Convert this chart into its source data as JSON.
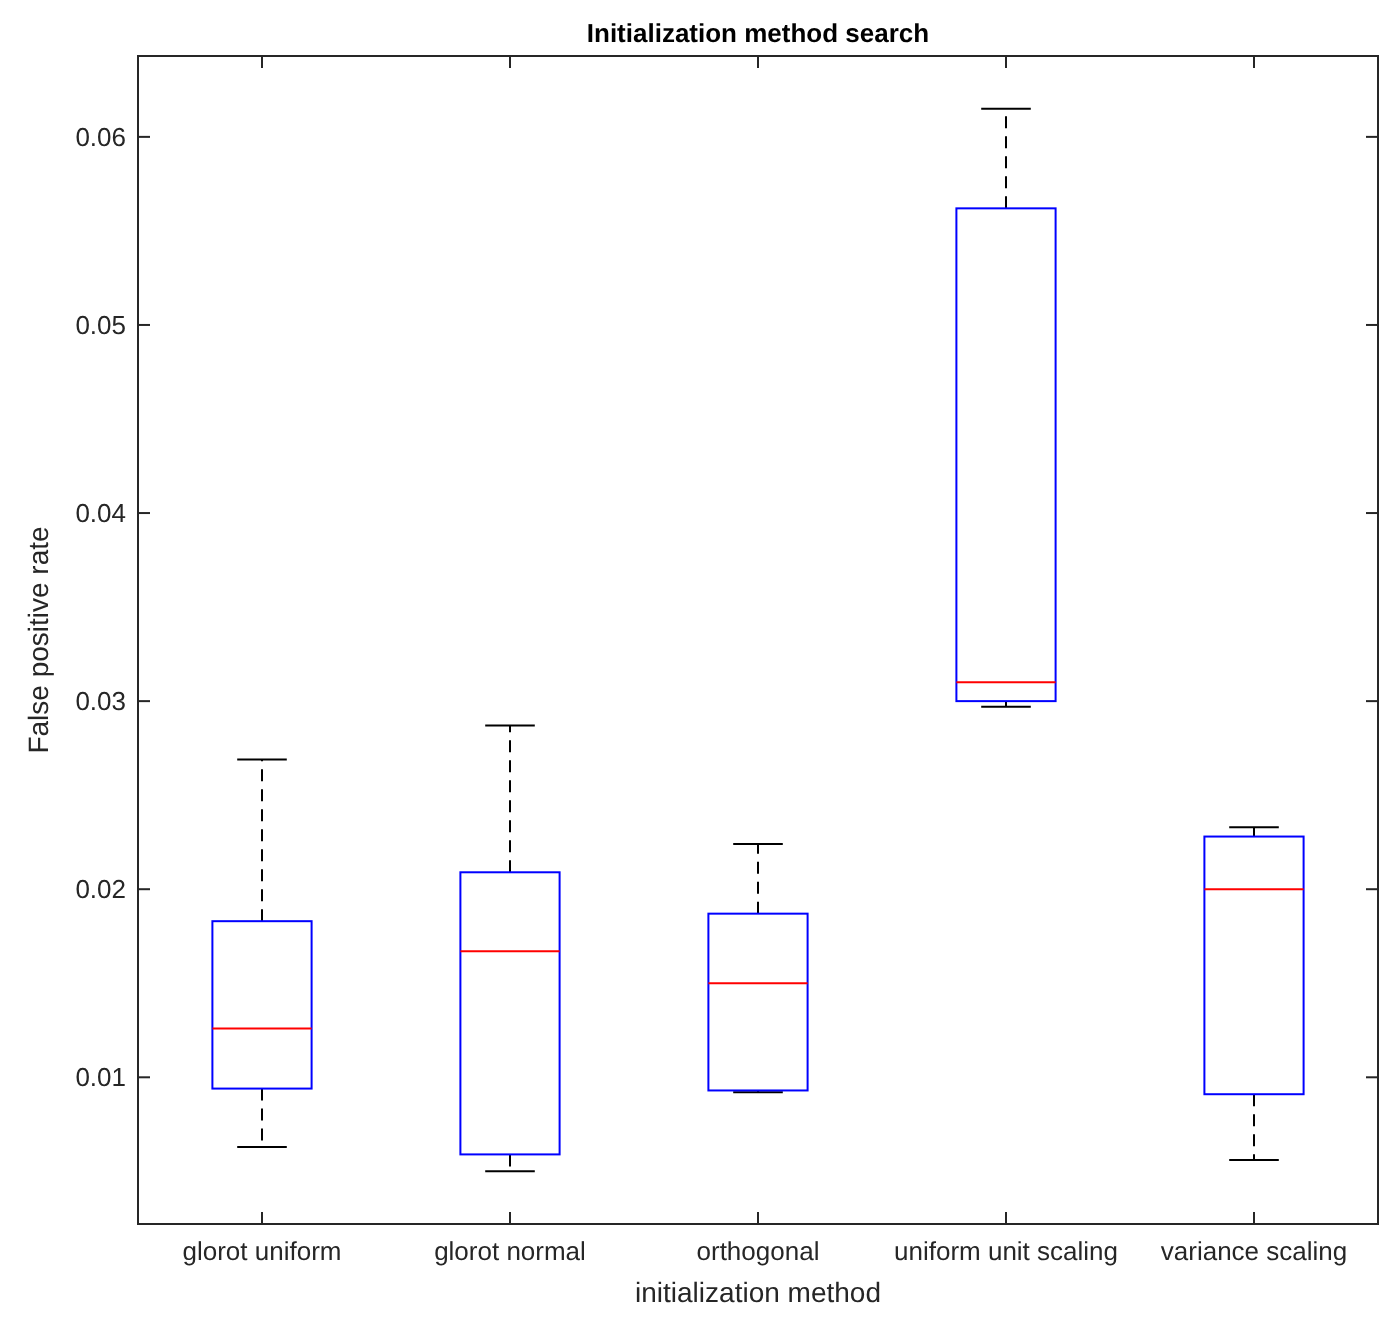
{
  "chart_data": {
    "type": "box",
    "title": "Initialization method search",
    "xlabel": "initialization method",
    "ylabel": "False positive rate",
    "categories": [
      "glorot uniform",
      "glorot normal",
      "orthogonal",
      "uniform unit scaling",
      "variance scaling"
    ],
    "series": [
      {
        "color": "#0000ff",
        "boxes": [
          {
            "low": 0.0063,
            "q1": 0.0094,
            "median": 0.0126,
            "q3": 0.0183,
            "high": 0.0269
          },
          {
            "low": 0.005,
            "q1": 0.0059,
            "median": 0.0167,
            "q3": 0.0209,
            "high": 0.0287
          },
          {
            "low": 0.0092,
            "q1": 0.0093,
            "median": 0.015,
            "q3": 0.0187,
            "high": 0.0224
          },
          {
            "low": 0.0297,
            "q1": 0.03,
            "median": 0.031,
            "q3": 0.0562,
            "high": 0.0615
          },
          {
            "low": 0.0056,
            "q1": 0.0091,
            "median": 0.02,
            "q3": 0.0228,
            "high": 0.0233
          }
        ]
      }
    ],
    "ylim": [
      0.0022,
      0.0643
    ],
    "yticks": [
      0.01,
      0.02,
      0.03,
      0.04,
      0.05,
      0.06
    ],
    "grid": false
  }
}
